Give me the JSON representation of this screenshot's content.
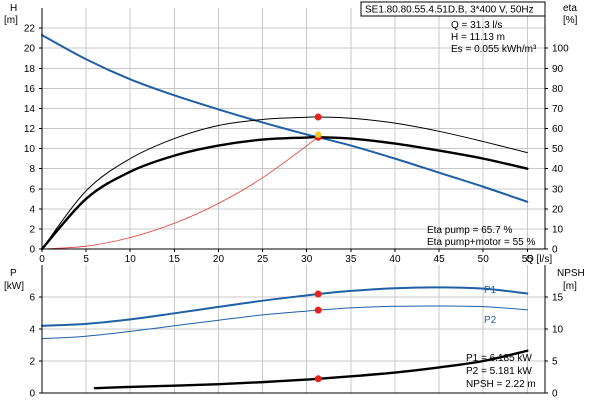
{
  "header": {
    "title": "SE1.80.80.55.4.51D.B, 3*400 V, 50Hz"
  },
  "duty_info": [
    "Q = 31.3 l/s",
    "H = 11.13 m",
    "Es = 0.055 kWh/m³"
  ],
  "eta_info": [
    "Eta pump = 65.7 %",
    "Eta pump+motor = 55 %"
  ],
  "power_info": [
    "P1 = 6.185 kW",
    "P2 = 5.181 kW",
    "NPSH = 2.22 m"
  ],
  "chart_data": [
    {
      "type": "line",
      "xlabel": "Q [l/s]",
      "ylabel_left": [
        "H",
        "[m]"
      ],
      "ylabel_right": [
        "eta",
        "[%]"
      ],
      "xlim": [
        0,
        57
      ],
      "ylim_left": [
        0,
        24
      ],
      "ylim_right": [
        0,
        120
      ],
      "xticks": [
        0,
        5,
        10,
        15,
        20,
        25,
        30,
        35,
        40,
        45,
        50,
        55
      ],
      "yticks_left": [
        0,
        2,
        4,
        6,
        8,
        10,
        12,
        14,
        16,
        18,
        20,
        22
      ],
      "yticks_right": [
        0,
        10,
        20,
        30,
        40,
        50,
        60,
        70,
        80,
        90,
        100
      ],
      "grid": true,
      "series": [
        {
          "axis": "left",
          "color": "#1f5fa6",
          "width": 2,
          "x": [
            0,
            5,
            10,
            15,
            20,
            25,
            30,
            31.3,
            35,
            40,
            45,
            50,
            55
          ],
          "values": [
            21.3,
            18.9,
            16.9,
            15.3,
            13.9,
            12.6,
            11.4,
            11.13,
            10.3,
            9.0,
            7.6,
            6.2,
            4.7
          ]
        },
        {
          "axis": "left",
          "color": "#000000",
          "width": 2.4,
          "x": [
            0,
            5,
            10,
            15,
            20,
            25,
            30,
            31.3,
            35,
            40,
            45,
            50,
            55
          ],
          "values": [
            0,
            5.0,
            7.7,
            9.3,
            10.3,
            10.9,
            11.1,
            11.13,
            11.0,
            10.5,
            9.8,
            9.0,
            8.0
          ]
        },
        {
          "axis": "right",
          "color": "#000000",
          "width": 1,
          "x": [
            0,
            5,
            10,
            15,
            20,
            25,
            30,
            31.3,
            35,
            40,
            45,
            50,
            55
          ],
          "values": [
            0,
            29,
            45,
            55,
            61.5,
            64.5,
            65.6,
            65.7,
            65.1,
            62.7,
            58.6,
            53.5,
            48
          ]
        },
        {
          "axis": "left",
          "color": "#e53935",
          "width": 0.8,
          "x": [
            0,
            5,
            10,
            15,
            20,
            25,
            31.3
          ],
          "values": [
            0,
            0.28,
            1.14,
            2.56,
            4.54,
            7.1,
            11.13
          ]
        }
      ],
      "markers": [
        {
          "axis": "right",
          "x": 31.3,
          "y": 65.7
        },
        {
          "axis": "left",
          "x": 31.3,
          "y": 11.13
        },
        {
          "axis": "left",
          "x": 31.3,
          "y": 11.13
        }
      ]
    },
    {
      "type": "line",
      "ylabel_left": [
        "P",
        "[kW]"
      ],
      "ylabel_right": [
        "NPSH",
        "[m]"
      ],
      "xlim": [
        0,
        57
      ],
      "ylim_left": [
        0,
        8
      ],
      "ylim_right": [
        0,
        20
      ],
      "yticks_left": [
        0,
        2,
        4,
        6
      ],
      "yticks_right": [
        0,
        5,
        10,
        15
      ],
      "grid": true,
      "series": [
        {
          "name": "P1",
          "axis": "left",
          "color": "#1f5fa6",
          "width": 2,
          "x": [
            0,
            5,
            10,
            15,
            20,
            25,
            30,
            31.3,
            35,
            40,
            45,
            50,
            55
          ],
          "values": [
            4.2,
            4.32,
            4.6,
            4.98,
            5.38,
            5.77,
            6.1,
            6.185,
            6.38,
            6.55,
            6.6,
            6.52,
            6.22
          ]
        },
        {
          "name": "P2",
          "axis": "left",
          "color": "#1f5fa6",
          "width": 1,
          "x": [
            0,
            5,
            10,
            15,
            20,
            25,
            30,
            31.3,
            35,
            40,
            45,
            50,
            55
          ],
          "values": [
            3.4,
            3.55,
            3.85,
            4.2,
            4.55,
            4.88,
            5.12,
            5.181,
            5.32,
            5.42,
            5.44,
            5.4,
            5.2
          ]
        },
        {
          "axis": "right",
          "color": "#000000",
          "width": 2.4,
          "x": [
            6,
            10,
            15,
            20,
            25,
            30,
            31.3,
            35,
            40,
            45,
            50,
            55
          ],
          "values": [
            0.75,
            0.95,
            1.15,
            1.38,
            1.7,
            2.1,
            2.22,
            2.6,
            3.2,
            4.0,
            5.0,
            6.6
          ]
        }
      ],
      "markers": [
        {
          "axis": "left",
          "x": 31.3,
          "y": 6.185
        },
        {
          "axis": "left",
          "x": 31.3,
          "y": 5.181
        },
        {
          "axis": "right",
          "x": 31.3,
          "y": 2.22
        }
      ]
    }
  ]
}
